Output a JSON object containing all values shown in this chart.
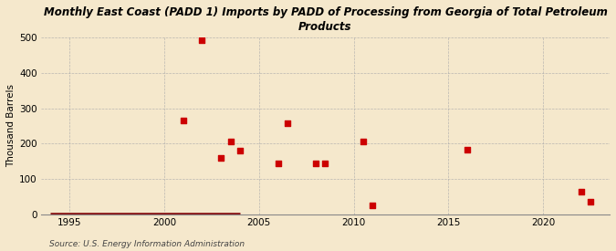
{
  "title": "Monthly East Coast (PADD 1) Imports by PADD of Processing from Georgia of Total Petroleum\nProducts",
  "ylabel": "Thousand Barrels",
  "source": "Source: U.S. Energy Information Administration",
  "background_color": "#f5e8cc",
  "scatter_color": "#cc0000",
  "line_color": "#8b1a1a",
  "xlim": [
    1993.5,
    2023.5
  ],
  "ylim": [
    0,
    500
  ],
  "yticks": [
    0,
    100,
    200,
    300,
    400,
    500
  ],
  "xticks": [
    1995,
    2000,
    2005,
    2010,
    2015,
    2020
  ],
  "scatter_x": [
    2001.0,
    2002.0,
    2003.0,
    2003.5,
    2004.0,
    2006.0,
    2006.5,
    2008.0,
    2008.5,
    2010.5,
    2011.0,
    2016.0,
    2022.0,
    2022.5
  ],
  "scatter_y": [
    265,
    493,
    160,
    205,
    180,
    143,
    258,
    145,
    145,
    205,
    25,
    183,
    65,
    35
  ],
  "line_x_start": 1994.0,
  "line_x_end": 2004.0,
  "line_y": 2
}
